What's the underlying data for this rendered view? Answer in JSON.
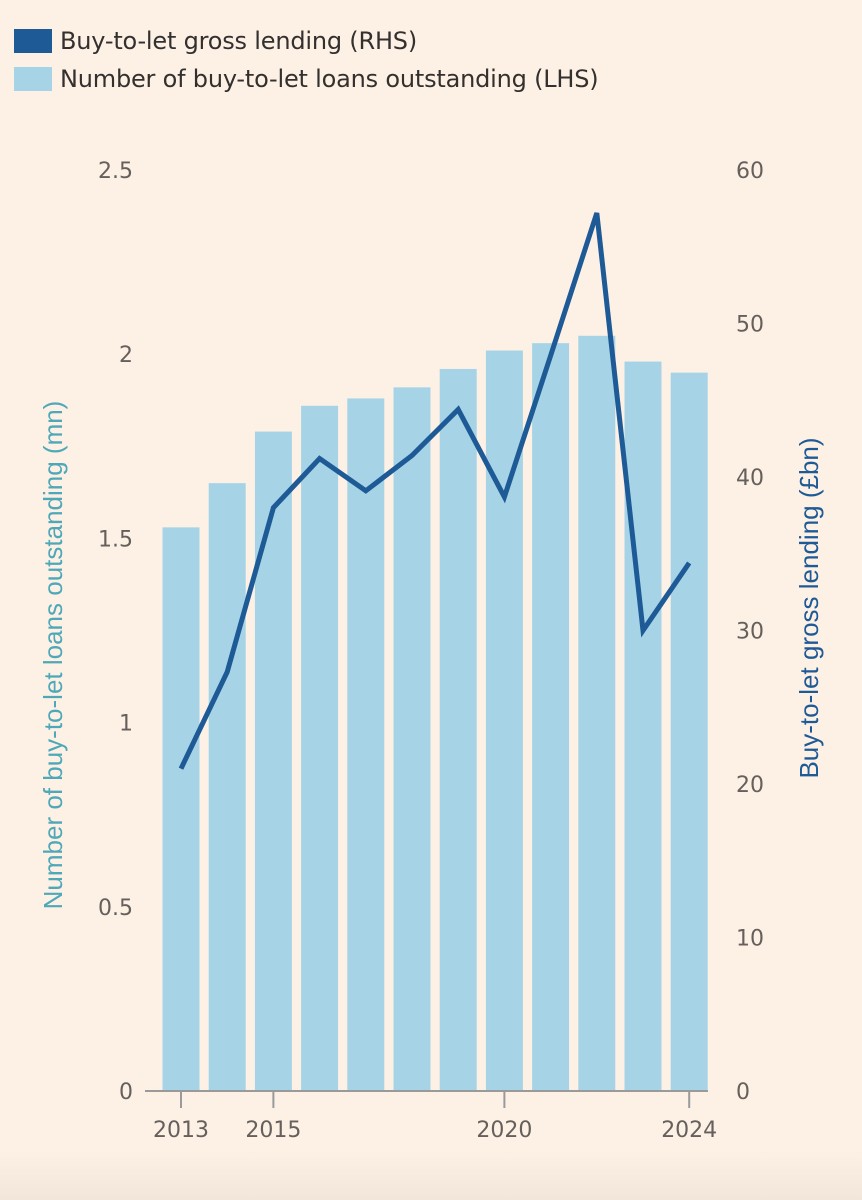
{
  "colors": {
    "background": "#fdf1e6",
    "bar": "#a6d4e6",
    "line": "#1e5a96",
    "lhs_title": "#4fa8b8",
    "rhs_title": "#1e5a96",
    "tick_text": "#66605c",
    "axis_line": "#9a9a9a"
  },
  "legend": [
    {
      "label": "Buy-to-let gross lending (RHS)",
      "color": "#1e5a96"
    },
    {
      "label": "Number of buy-to-let loans outstanding (LHS)",
      "color": "#a6d4e6"
    }
  ],
  "chart_data": {
    "type": "bar",
    "title": "",
    "categories": [
      "2013",
      "2014",
      "2015",
      "2016",
      "2017",
      "2018",
      "2019",
      "2020",
      "2021",
      "2022",
      "2023",
      "2024"
    ],
    "x_tick_labels": [
      "2013",
      "2015",
      "2020",
      "2024"
    ],
    "series": [
      {
        "name": "Number of buy-to-let loans outstanding (LHS)",
        "type": "bar",
        "axis": "left",
        "values": [
          1.53,
          1.65,
          1.79,
          1.86,
          1.88,
          1.91,
          1.96,
          2.01,
          2.03,
          2.05,
          1.98,
          1.95
        ]
      },
      {
        "name": "Buy-to-let gross lending (RHS)",
        "type": "line",
        "axis": "right",
        "values": [
          21.0,
          27.3,
          38.0,
          41.2,
          39.1,
          41.4,
          44.4,
          38.7,
          47.9,
          57.2,
          30.0,
          34.4
        ]
      }
    ],
    "left_axis": {
      "label": "Number of buy-to-let loans outstanding (mn)",
      "ylim": [
        0,
        2.5
      ],
      "ticks": [
        0,
        0.5,
        1,
        1.5,
        2,
        2.5
      ],
      "tick_labels": [
        "0",
        "0.5",
        "1",
        "1.5",
        "2",
        "2.5"
      ]
    },
    "right_axis": {
      "label": "Buy-to-let gross lending (£bn)",
      "ylim": [
        0,
        60
      ],
      "ticks": [
        0,
        10,
        20,
        30,
        40,
        50,
        60
      ],
      "tick_labels": [
        "0",
        "10",
        "20",
        "30",
        "40",
        "50",
        "60"
      ]
    },
    "grid": false,
    "legend_position": "top-left"
  }
}
